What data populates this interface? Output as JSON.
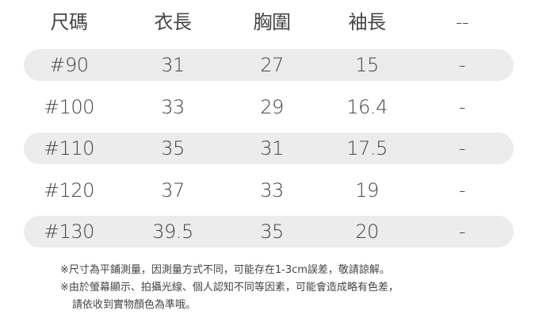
{
  "table": {
    "headers": [
      "尺碼",
      "衣長",
      "胸圍",
      "袖長",
      "--"
    ],
    "rows": [
      [
        "#90",
        "31",
        "27",
        "15",
        "-"
      ],
      [
        "#100",
        "33",
        "29",
        "16.4",
        "-"
      ],
      [
        "#110",
        "35",
        "31",
        "17.5",
        "-"
      ],
      [
        "#120",
        "37",
        "33",
        "19",
        "-"
      ],
      [
        "#130",
        "39.5",
        "35",
        "20",
        "-"
      ]
    ],
    "shaded_row_color": "#ececec"
  },
  "notes": [
    "※尺寸為平鋪測量，因測量方式不同，可能存在1-3cm誤差，敬請諒解。",
    "※由於螢幕顯示、拍攝光線、個人認知不同等因素，可能會造成略有色差，",
    "請依收到實物顏色為準哦。"
  ]
}
